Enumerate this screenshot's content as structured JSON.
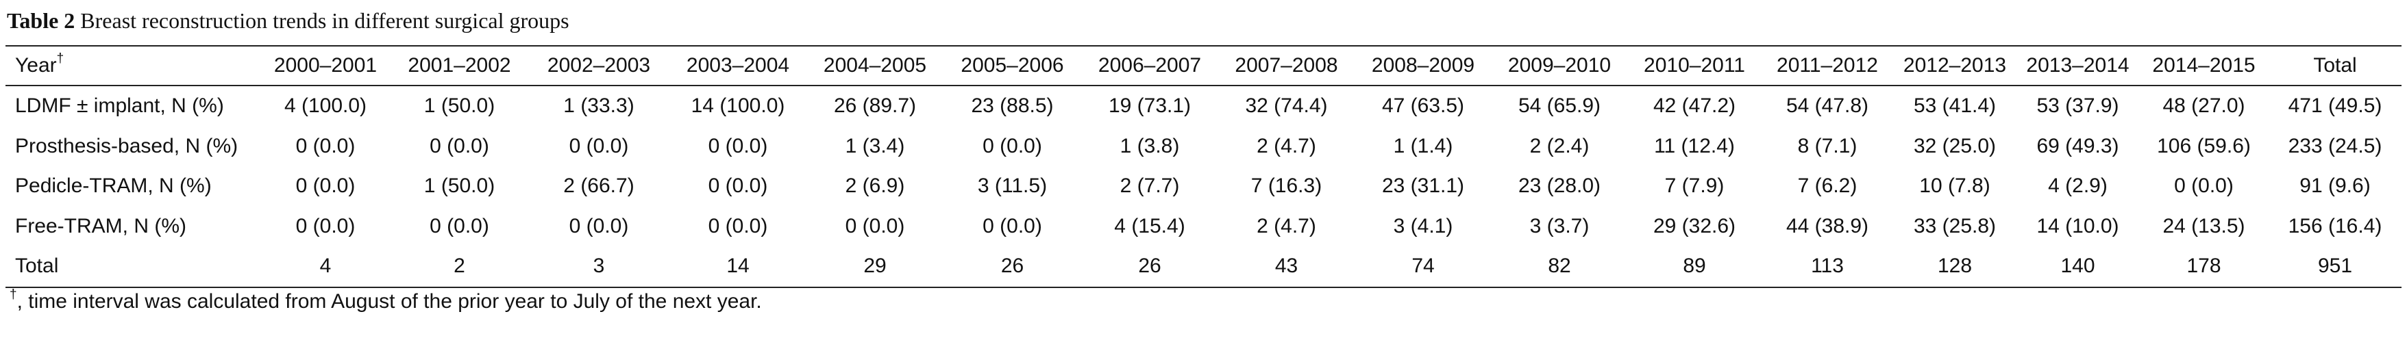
{
  "header": {
    "label": "Table 2",
    "title": "Breast reconstruction trends in different surgical groups"
  },
  "table": {
    "columns": [
      "Year",
      "2000–2001",
      "2001–2002",
      "2002–2003",
      "2003–2004",
      "2004–2005",
      "2005–2006",
      "2006–2007",
      "2007–2008",
      "2008–2009",
      "2009–2010",
      "2010–2011",
      "2011–2012",
      "2012–2013",
      "2013–2014",
      "2014–2015",
      "Total"
    ],
    "year_marker": "†",
    "rows": [
      [
        "LDMF ± implant, N (%)",
        "4 (100.0)",
        "1 (50.0)",
        "1 (33.3)",
        "14 (100.0)",
        "26 (89.7)",
        "23 (88.5)",
        "19 (73.1)",
        "32 (74.4)",
        "47 (63.5)",
        "54 (65.9)",
        "42 (47.2)",
        "54 (47.8)",
        "53 (41.4)",
        "53 (37.9)",
        "48 (27.0)",
        "471 (49.5)"
      ],
      [
        "Prosthesis-based, N (%)",
        "0 (0.0)",
        "0 (0.0)",
        "0 (0.0)",
        "0 (0.0)",
        "1 (3.4)",
        "0 (0.0)",
        "1 (3.8)",
        "2 (4.7)",
        "1 (1.4)",
        "2 (2.4)",
        "11 (12.4)",
        "8 (7.1)",
        "32 (25.0)",
        "69 (49.3)",
        "106 (59.6)",
        "233 (24.5)"
      ],
      [
        "Pedicle-TRAM, N (%)",
        "0 (0.0)",
        "1 (50.0)",
        "2 (66.7)",
        "0 (0.0)",
        "2 (6.9)",
        "3 (11.5)",
        "2 (7.7)",
        "7 (16.3)",
        "23 (31.1)",
        "23 (28.0)",
        "7 (7.9)",
        "7 (6.2)",
        "10 (7.8)",
        "4 (2.9)",
        "0 (0.0)",
        "91 (9.6)"
      ],
      [
        "Free-TRAM, N (%)",
        "0 (0.0)",
        "0 (0.0)",
        "0 (0.0)",
        "0 (0.0)",
        "0 (0.0)",
        "0 (0.0)",
        "4 (15.4)",
        "2 (4.7)",
        "3 (4.1)",
        "3 (3.7)",
        "29 (32.6)",
        "44 (38.9)",
        "33 (25.8)",
        "14 (10.0)",
        "24 (13.5)",
        "156 (16.4)"
      ],
      [
        "Total",
        "4",
        "2",
        "3",
        "14",
        "29",
        "26",
        "26",
        "43",
        "74",
        "82",
        "89",
        "113",
        "128",
        "140",
        "178",
        "951"
      ]
    ]
  },
  "footnote": {
    "marker": "†",
    "text": ", time interval was calculated from August of the prior year to July of the next year."
  }
}
